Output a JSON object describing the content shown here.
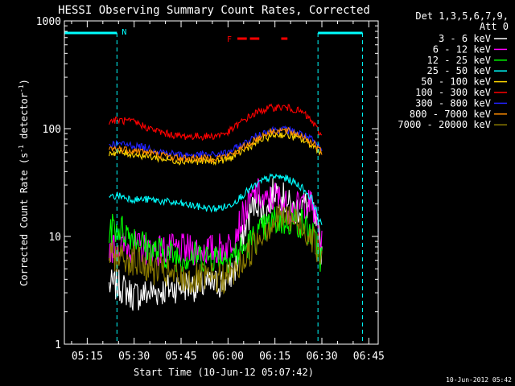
{
  "chart_data": {
    "type": "line",
    "title": "HESSI Observing Summary Count Rates, Corrected",
    "xlabel": "Start Time (10-Jun-12 05:07:42)",
    "ylabel": "Corrected Count Rate (s",
    "ylabel_exp1": "-1",
    "ylabel_mid": " detector",
    "ylabel_exp2": "-1",
    "ylabel_end": ")",
    "yscale": "log",
    "xlim": [
      "05:07:42",
      "06:48:00"
    ],
    "ylim": [
      1,
      1000
    ],
    "x_ticks": [
      "05:15",
      "05:30",
      "05:45",
      "06:00",
      "06:15",
      "06:30",
      "06:45"
    ],
    "y_ticks": [
      {
        "v": 1,
        "label": "1"
      },
      {
        "v": 10,
        "label": "10"
      },
      {
        "v": 100,
        "label": "100"
      },
      {
        "v": 1000,
        "label": "1000"
      }
    ],
    "legend_title_1": "Det 1,3,5,6,7,9,",
    "legend_title_2": "Att 0",
    "legend_position": "right",
    "footer_date": "10-Jun-2012 05:42",
    "night_label": "N",
    "flare_label": "F",
    "night_intervals": [
      [
        "05:07:42",
        "05:24:30"
      ],
      [
        "06:28:45",
        "06:43:00"
      ]
    ],
    "flare_segments": [
      [
        "06:03:00",
        "06:06:00"
      ],
      [
        "06:07:00",
        "06:10:00"
      ],
      [
        "06:17:00",
        "06:19:00"
      ]
    ],
    "x": [
      "05:22",
      "05:25",
      "05:30",
      "05:35",
      "05:40",
      "05:45",
      "05:50",
      "05:55",
      "06:00",
      "06:03",
      "06:06",
      "06:09",
      "06:12",
      "06:15",
      "06:18",
      "06:21",
      "06:24",
      "06:27",
      "06:30"
    ],
    "series": [
      {
        "name": "3 - 6 keV",
        "color": "#ffffff",
        "values": [
          3.5,
          3.5,
          2.8,
          3.0,
          3.2,
          3.5,
          3.5,
          3.5,
          4.0,
          5.5,
          14,
          22,
          16,
          28,
          22,
          17,
          20,
          18,
          7
        ]
      },
      {
        "name": "6 - 12 keV",
        "color": "#ff00ff",
        "values": [
          8,
          8,
          8,
          7.5,
          7.5,
          7.5,
          7.5,
          7.5,
          8,
          12,
          18,
          26,
          20,
          24,
          20,
          17,
          21,
          19,
          8
        ]
      },
      {
        "name": "12 - 25 keV",
        "color": "#00ff00",
        "values": [
          12,
          12,
          10,
          7.5,
          7,
          6.5,
          6.5,
          6.5,
          6.5,
          7,
          8,
          10,
          12,
          14,
          14,
          14,
          13,
          10,
          6
        ]
      },
      {
        "name": "25 - 50 keV",
        "color": "#00ffff",
        "values": [
          23,
          24,
          22,
          22,
          21,
          20,
          19,
          18,
          19,
          22,
          26,
          30,
          34,
          36,
          35,
          32,
          28,
          22,
          12
        ]
      },
      {
        "name": "50 - 100 keV",
        "color": "#ffd700",
        "values": [
          60,
          60,
          58,
          55,
          52,
          50,
          50,
          50,
          52,
          58,
          66,
          74,
          82,
          88,
          88,
          84,
          78,
          70,
          60
        ]
      },
      {
        "name": "100 - 300 keV",
        "color": "#ff0000",
        "values": [
          118,
          120,
          115,
          100,
          90,
          85,
          85,
          85,
          92,
          108,
          125,
          140,
          152,
          158,
          158,
          152,
          140,
          115,
          85
        ]
      },
      {
        "name": "300 - 800 keV",
        "color": "#2222ff",
        "values": [
          72,
          72,
          70,
          65,
          60,
          57,
          57,
          57,
          60,
          67,
          75,
          85,
          94,
          98,
          98,
          95,
          88,
          78,
          62
        ]
      },
      {
        "name": "800 - 7000 keV",
        "color": "#ff8c00",
        "values": [
          65,
          65,
          63,
          60,
          56,
          53,
          53,
          53,
          56,
          62,
          70,
          80,
          90,
          96,
          96,
          92,
          85,
          74,
          60
        ]
      },
      {
        "name": "7000 - 20000 keV",
        "color": "#8b7a00",
        "values": [
          6.5,
          6.5,
          6.0,
          5.0,
          4.5,
          4.0,
          4.0,
          4.0,
          4.2,
          5,
          6.5,
          9,
          12,
          14,
          15,
          14,
          12,
          10,
          6
        ]
      }
    ]
  }
}
